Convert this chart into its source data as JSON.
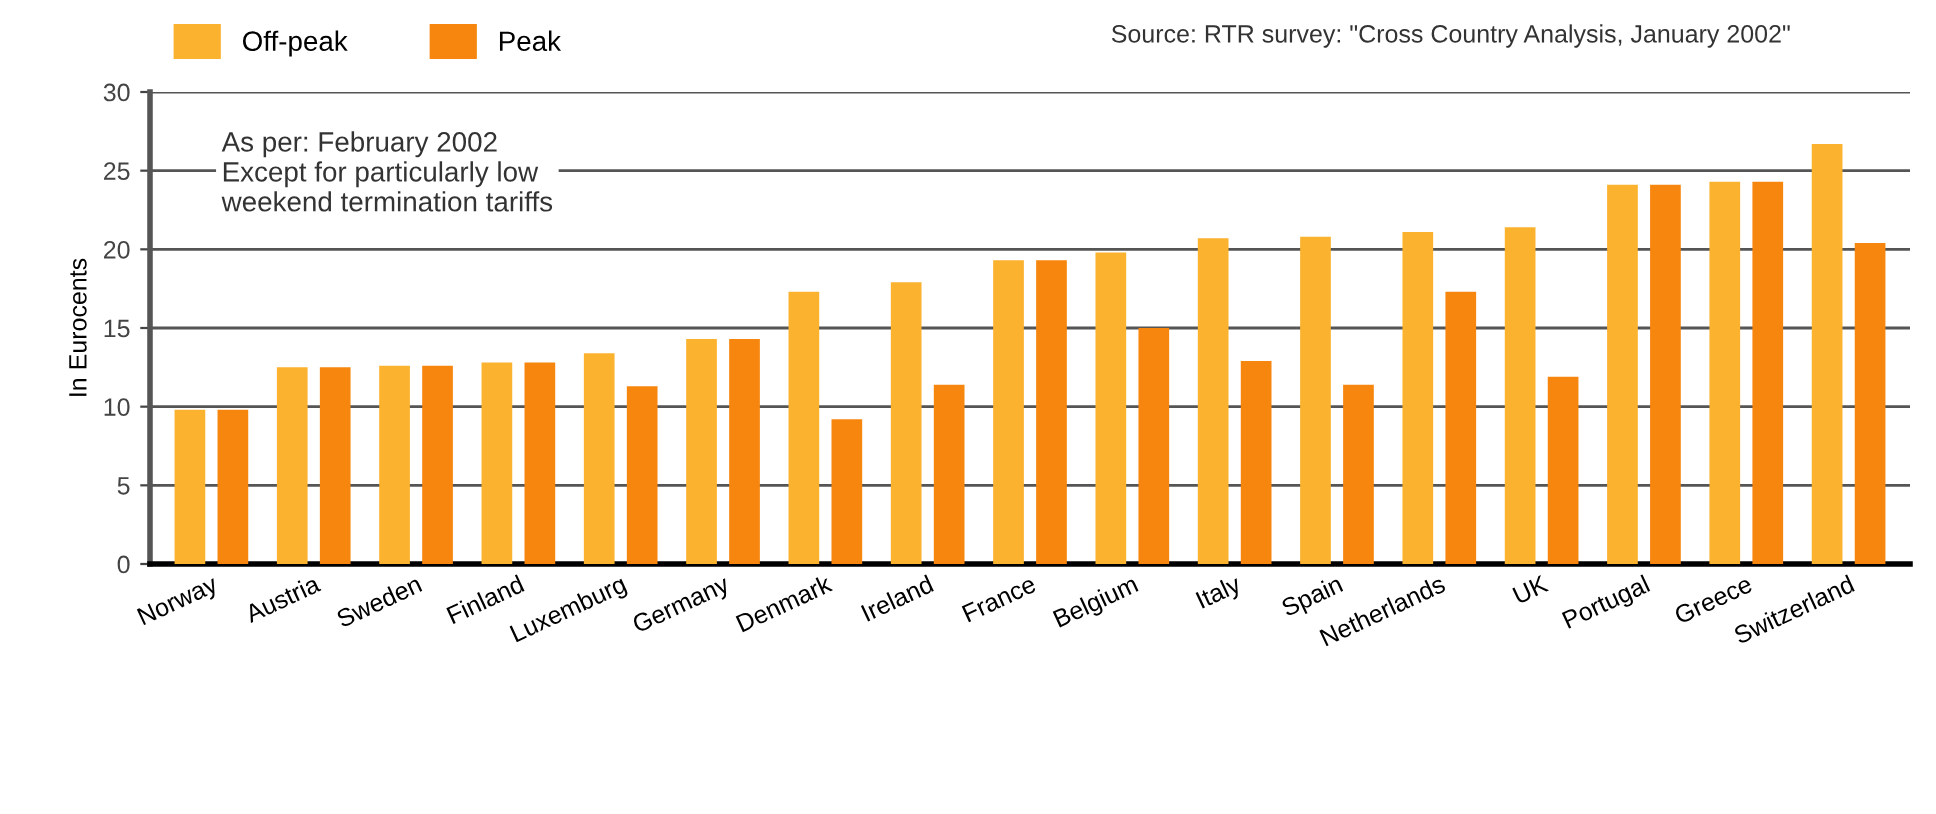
{
  "chart_data": {
    "type": "bar",
    "ylabel": "In Eurocents",
    "categories": [
      "Norway",
      "Austria",
      "Sweden",
      "Finland",
      "Luxemburg",
      "Germany",
      "Denmark",
      "Ireland",
      "France",
      "Belgium",
      "Italy",
      "Spain",
      "Netherlands",
      "UK",
      "Portugal",
      "Greece",
      "Switzerland"
    ],
    "series": [
      {
        "name": "Off-peak",
        "color": "#fbb22e",
        "values": [
          9.8,
          12.5,
          12.6,
          12.8,
          13.4,
          14.3,
          17.3,
          17.9,
          19.3,
          19.8,
          20.7,
          20.8,
          21.1,
          21.4,
          24.1,
          24.3,
          26.7
        ]
      },
      {
        "name": "Peak",
        "color": "#f7860f",
        "values": [
          9.8,
          12.5,
          12.6,
          12.8,
          11.3,
          14.3,
          9.2,
          11.4,
          19.3,
          15.0,
          12.9,
          11.4,
          17.3,
          11.9,
          24.1,
          24.3,
          20.4
        ]
      }
    ],
    "ylim": [
      0,
      30
    ],
    "yticks": [
      0,
      5,
      10,
      15,
      20,
      25,
      30
    ],
    "grid": "y",
    "legend": "top left",
    "annotations": [
      "Source: RTR survey: \"Cross Country Analysis, January 2002\"",
      "As per: February 2002\nExcept for particularly low\nweekend termination tariffs"
    ]
  }
}
